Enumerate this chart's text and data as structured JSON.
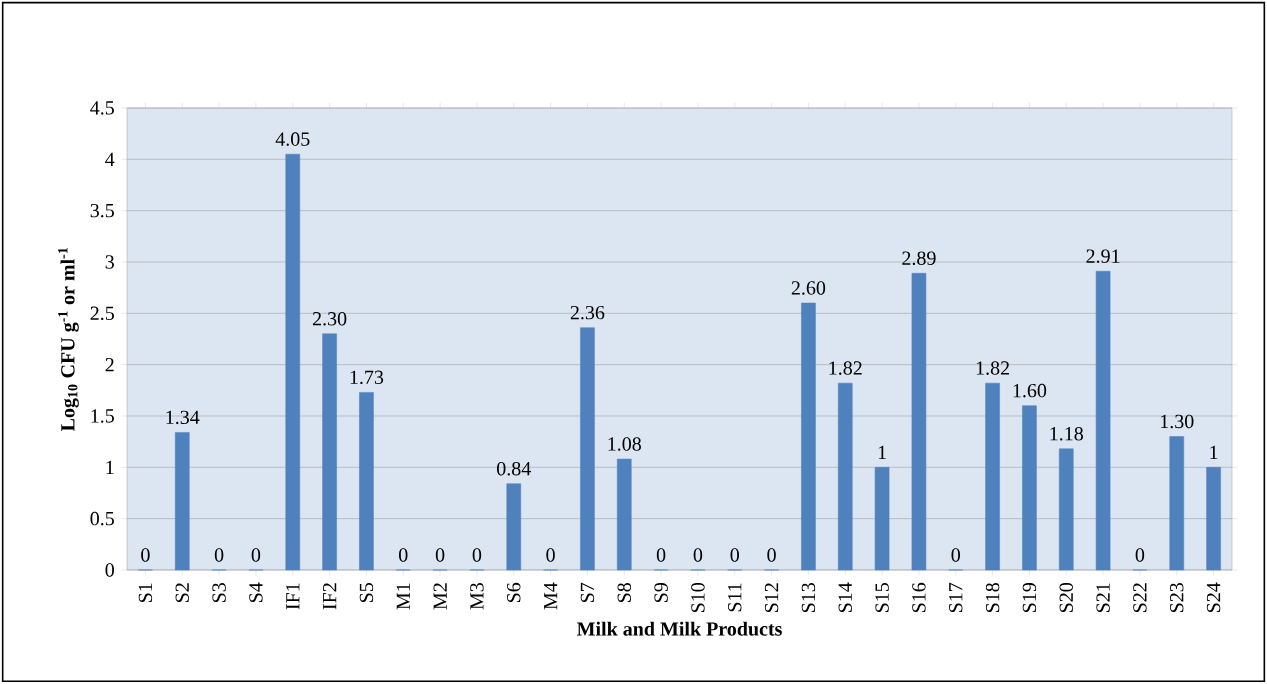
{
  "chart_data": {
    "type": "bar",
    "xlabel": "Milk and Milk Products",
    "ylabel": "Log$_{10}$ CFU g$^{-1}$ or ml$^{-1}$",
    "categories": [
      "S1",
      "S2",
      "S3",
      "S4",
      "IF1",
      "IF2",
      "S5",
      "M1",
      "M2",
      "M3",
      "S6",
      "M4",
      "S7",
      "S8",
      "S9",
      "S10",
      "S11",
      "S12",
      "S13",
      "S14",
      "S15",
      "S16",
      "S17",
      "S18",
      "S19",
      "S20",
      "S21",
      "S22",
      "S23",
      "S24"
    ],
    "values": [
      0,
      1.34,
      0,
      0,
      4.05,
      2.3,
      1.73,
      0,
      0,
      0,
      0.84,
      0,
      2.36,
      1.08,
      0,
      0,
      0,
      0,
      2.6,
      1.82,
      1,
      2.89,
      0,
      1.82,
      1.6,
      1.18,
      2.91,
      0,
      1.3,
      1
    ],
    "value_labels": [
      "0",
      "1.34",
      "0",
      "0",
      "4.05",
      "2.30",
      "1.73",
      "0",
      "0",
      "0",
      "0.84",
      "0",
      "2.36",
      "1.08",
      "0",
      "0",
      "0",
      "0",
      "2.60",
      "1.82",
      "1",
      "2.89",
      "0",
      "1.82",
      "1.60",
      "1.18",
      "2.91",
      "0",
      "1.30",
      "1"
    ],
    "color": "#4f81bd",
    "ylim": [
      0,
      4.5
    ],
    "yticks": [
      0,
      0.5,
      1,
      1.5,
      2,
      2.5,
      3,
      3.5,
      4,
      4.5
    ],
    "grid": "y"
  }
}
